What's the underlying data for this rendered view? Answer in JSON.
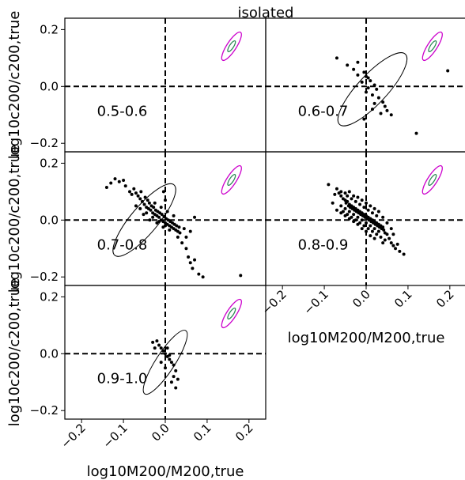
{
  "chart_data": {
    "type": "scatter",
    "title": "isolated",
    "xlabel": "log10M200/M200,true",
    "ylabel": "log10c200/c200,true",
    "xlim": [
      -0.24,
      0.24
    ],
    "ylim": [
      -0.23,
      0.24
    ],
    "xticks": [
      -0.2,
      -0.1,
      0.0,
      0.1,
      0.2
    ],
    "xtick_labels": [
      "−0.2",
      "−0.1",
      "0.0",
      "0.1",
      "0.2"
    ],
    "yticks": [
      -0.2,
      0.0,
      0.2
    ],
    "ytick_labels": [
      "−0.2",
      "0.0",
      "0.2"
    ],
    "colors": {
      "points": "#000000",
      "ellipse": "#000000",
      "outer_ref": "#cc00cc",
      "inner_ref": "#2e8b57",
      "reference_lines": "#000000"
    },
    "panels": [
      {
        "label": "0.5-0.6",
        "points": []
      },
      {
        "label": "0.6-0.7",
        "points": [
          [
            -0.07,
            0.1
          ],
          [
            -0.02,
            0.085
          ],
          [
            -0.045,
            0.075
          ],
          [
            -0.03,
            0.06
          ],
          [
            -0.005,
            0.05
          ],
          [
            -0.02,
            0.04
          ],
          [
            0.0,
            0.035
          ],
          [
            0.005,
            0.03
          ],
          [
            0.01,
            0.02
          ],
          [
            -0.01,
            0.015
          ],
          [
            0.02,
            0.005
          ],
          [
            0.005,
            -0.005
          ],
          [
            0.025,
            -0.01
          ],
          [
            0.0,
            -0.02
          ],
          [
            0.015,
            -0.03
          ],
          [
            0.03,
            -0.04
          ],
          [
            0.04,
            -0.055
          ],
          [
            0.02,
            -0.06
          ],
          [
            0.045,
            -0.07
          ],
          [
            0.05,
            -0.085
          ],
          [
            0.015,
            -0.08
          ],
          [
            0.035,
            -0.095
          ],
          [
            0.06,
            -0.1
          ],
          [
            0.12,
            -0.165
          ],
          [
            0.195,
            0.055
          ],
          [
            -0.005,
            -0.115
          ]
        ],
        "ellipse": {
          "cx": 0.015,
          "cy": -0.01,
          "major": 0.23,
          "minor": 0.07,
          "angle_deg": -47
        }
      },
      {
        "label": "0.7-0.8",
        "points": [
          [
            -0.14,
            0.115
          ],
          [
            -0.13,
            0.13
          ],
          [
            -0.12,
            0.145
          ],
          [
            -0.11,
            0.135
          ],
          [
            -0.1,
            0.14
          ],
          [
            -0.095,
            0.12
          ],
          [
            -0.085,
            0.1
          ],
          [
            -0.08,
            0.09
          ],
          [
            -0.075,
            0.11
          ],
          [
            -0.07,
            0.095
          ],
          [
            -0.065,
            0.085
          ],
          [
            -0.06,
            0.075
          ],
          [
            -0.058,
            0.1
          ],
          [
            -0.055,
            0.065
          ],
          [
            -0.05,
            0.055
          ],
          [
            -0.048,
            0.08
          ],
          [
            -0.045,
            0.045
          ],
          [
            -0.042,
            0.07
          ],
          [
            -0.04,
            0.04
          ],
          [
            -0.038,
            0.06
          ],
          [
            -0.035,
            0.035
          ],
          [
            -0.033,
            0.05
          ],
          [
            -0.03,
            0.025
          ],
          [
            -0.028,
            0.045
          ],
          [
            -0.025,
            0.02
          ],
          [
            -0.023,
            0.035
          ],
          [
            -0.02,
            0.015
          ],
          [
            -0.018,
            0.03
          ],
          [
            -0.015,
            0.01
          ],
          [
            -0.013,
            0.025
          ],
          [
            -0.01,
            0.0
          ],
          [
            -0.008,
            0.02
          ],
          [
            -0.005,
            -0.005
          ],
          [
            -0.003,
            0.012
          ],
          [
            0.0,
            -0.01
          ],
          [
            0.002,
            0.005
          ],
          [
            0.005,
            -0.015
          ],
          [
            0.007,
            0.0
          ],
          [
            0.01,
            -0.02
          ],
          [
            0.012,
            -0.005
          ],
          [
            0.015,
            -0.025
          ],
          [
            0.017,
            -0.01
          ],
          [
            0.02,
            -0.03
          ],
          [
            0.022,
            -0.015
          ],
          [
            0.025,
            -0.035
          ],
          [
            0.027,
            -0.02
          ],
          [
            0.03,
            -0.04
          ],
          [
            0.033,
            -0.025
          ],
          [
            0.035,
            -0.045
          ],
          [
            -0.06,
            0.04
          ],
          [
            -0.045,
            0.025
          ],
          [
            -0.03,
            0.01
          ],
          [
            -0.015,
            -0.005
          ],
          [
            0.0,
            -0.02
          ],
          [
            -0.07,
            0.05
          ],
          [
            -0.052,
            0.02
          ],
          [
            -0.037,
            0.0
          ],
          [
            -0.02,
            -0.01
          ],
          [
            -0.005,
            -0.025
          ],
          [
            0.01,
            -0.035
          ],
          [
            -0.025,
            0.06
          ],
          [
            -0.01,
            0.045
          ],
          [
            0.005,
            0.03
          ],
          [
            0.02,
            0.015
          ],
          [
            -0.004,
            0.1
          ],
          [
            0.0,
            0.07
          ],
          [
            0.03,
            -0.06
          ],
          [
            0.04,
            -0.08
          ],
          [
            0.05,
            -0.1
          ],
          [
            0.055,
            -0.13
          ],
          [
            0.06,
            -0.15
          ],
          [
            0.065,
            -0.17
          ],
          [
            0.07,
            -0.14
          ],
          [
            0.08,
            -0.19
          ],
          [
            0.09,
            -0.2
          ],
          [
            0.07,
            0.01
          ],
          [
            0.18,
            -0.195
          ],
          [
            0.05,
            -0.06
          ],
          [
            0.045,
            -0.03
          ],
          [
            0.06,
            -0.04
          ]
        ],
        "ellipse": {
          "cx": -0.05,
          "cy": 0.0,
          "major": 0.22,
          "minor": 0.065,
          "angle_deg": -50
        }
      },
      {
        "label": "0.8-0.9",
        "points": [
          [
            -0.09,
            0.125
          ],
          [
            -0.07,
            0.11
          ],
          [
            -0.065,
            0.095
          ],
          [
            -0.06,
            0.085
          ],
          [
            -0.055,
            0.075
          ],
          [
            -0.05,
            0.07
          ],
          [
            -0.048,
            0.06
          ],
          [
            -0.045,
            0.065
          ],
          [
            -0.042,
            0.05
          ],
          [
            -0.04,
            0.055
          ],
          [
            -0.038,
            0.045
          ],
          [
            -0.035,
            0.05
          ],
          [
            -0.033,
            0.04
          ],
          [
            -0.03,
            0.045
          ],
          [
            -0.028,
            0.035
          ],
          [
            -0.025,
            0.04
          ],
          [
            -0.023,
            0.03
          ],
          [
            -0.02,
            0.035
          ],
          [
            -0.018,
            0.025
          ],
          [
            -0.015,
            0.03
          ],
          [
            -0.013,
            0.02
          ],
          [
            -0.01,
            0.025
          ],
          [
            -0.008,
            0.015
          ],
          [
            -0.005,
            0.02
          ],
          [
            -0.003,
            0.01
          ],
          [
            0.0,
            0.015
          ],
          [
            0.002,
            0.005
          ],
          [
            0.005,
            0.01
          ],
          [
            0.007,
            0.0
          ],
          [
            0.01,
            0.005
          ],
          [
            0.012,
            -0.005
          ],
          [
            0.015,
            0.0
          ],
          [
            0.017,
            -0.01
          ],
          [
            0.02,
            -0.005
          ],
          [
            0.022,
            -0.015
          ],
          [
            0.025,
            -0.01
          ],
          [
            0.027,
            -0.02
          ],
          [
            0.03,
            -0.015
          ],
          [
            0.032,
            -0.025
          ],
          [
            0.035,
            -0.02
          ],
          [
            0.037,
            -0.03
          ],
          [
            0.04,
            -0.025
          ],
          [
            0.042,
            -0.035
          ],
          [
            -0.05,
            0.04
          ],
          [
            -0.04,
            0.03
          ],
          [
            -0.03,
            0.02
          ],
          [
            -0.02,
            0.01
          ],
          [
            -0.01,
            0.0
          ],
          [
            0.0,
            -0.01
          ],
          [
            0.01,
            -0.02
          ],
          [
            0.02,
            -0.03
          ],
          [
            0.03,
            -0.04
          ],
          [
            -0.045,
            0.085
          ],
          [
            -0.035,
            0.075
          ],
          [
            -0.025,
            0.065
          ],
          [
            -0.015,
            0.055
          ],
          [
            -0.005,
            0.045
          ],
          [
            0.005,
            0.035
          ],
          [
            0.015,
            0.025
          ],
          [
            0.025,
            0.015
          ],
          [
            -0.06,
            0.05
          ],
          [
            -0.055,
            0.03
          ],
          [
            -0.045,
            0.02
          ],
          [
            -0.035,
            0.01
          ],
          [
            -0.025,
            0.0
          ],
          [
            -0.015,
            -0.01
          ],
          [
            -0.005,
            -0.02
          ],
          [
            0.005,
            -0.03
          ],
          [
            0.015,
            -0.04
          ],
          [
            0.025,
            -0.05
          ],
          [
            0.035,
            -0.06
          ],
          [
            0.045,
            -0.07
          ],
          [
            0.05,
            -0.05
          ],
          [
            0.055,
            -0.065
          ],
          [
            0.06,
            -0.08
          ],
          [
            0.065,
            -0.09
          ],
          [
            0.07,
            -0.1
          ],
          [
            0.075,
            -0.085
          ],
          [
            0.08,
            -0.11
          ],
          [
            0.09,
            -0.12
          ],
          [
            0.045,
            -0.045
          ],
          [
            0.04,
            -0.08
          ],
          [
            0.02,
            -0.065
          ],
          [
            0.01,
            -0.055
          ],
          [
            0.0,
            -0.04
          ],
          [
            -0.01,
            -0.03
          ],
          [
            -0.02,
            -0.015
          ],
          [
            -0.03,
            -0.005
          ],
          [
            -0.04,
            0.005
          ],
          [
            -0.05,
            0.015
          ],
          [
            -0.06,
            0.025
          ],
          [
            -0.07,
            0.035
          ],
          [
            -0.08,
            0.06
          ],
          [
            -0.075,
            0.09
          ],
          [
            -0.06,
            0.1
          ],
          [
            -0.05,
            0.095
          ],
          [
            -0.04,
            0.1
          ],
          [
            -0.03,
            0.085
          ],
          [
            -0.02,
            0.08
          ],
          [
            -0.01,
            0.07
          ],
          [
            0.0,
            0.06
          ],
          [
            0.01,
            0.05
          ],
          [
            0.02,
            0.04
          ],
          [
            0.03,
            0.03
          ],
          [
            0.04,
            0.01
          ],
          [
            0.05,
            -0.01
          ],
          [
            0.06,
            -0.03
          ],
          [
            0.065,
            -0.05
          ]
        ],
        "ellipse": null
      },
      {
        "label": "0.9-1.0",
        "points": [
          [
            -0.03,
            0.04
          ],
          [
            -0.02,
            0.045
          ],
          [
            -0.015,
            0.03
          ],
          [
            -0.01,
            0.02
          ],
          [
            -0.005,
            0.01
          ],
          [
            0.0,
            0.0
          ],
          [
            0.005,
            -0.01
          ],
          [
            0.01,
            -0.02
          ],
          [
            0.015,
            -0.03
          ],
          [
            0.02,
            -0.04
          ],
          [
            0.025,
            -0.06
          ],
          [
            0.02,
            -0.08
          ],
          [
            0.015,
            -0.1
          ],
          [
            0.025,
            -0.12
          ],
          [
            0.03,
            -0.09
          ],
          [
            -0.01,
            -0.03
          ],
          [
            0.0,
            -0.05
          ],
          [
            0.005,
            0.02
          ],
          [
            -0.025,
            0.02
          ],
          [
            0.01,
            -0.005
          ]
        ],
        "ellipse": {
          "cx": 0.0,
          "cy": -0.03,
          "major": 0.18,
          "minor": 0.045,
          "angle_deg": -57
        }
      }
    ]
  }
}
